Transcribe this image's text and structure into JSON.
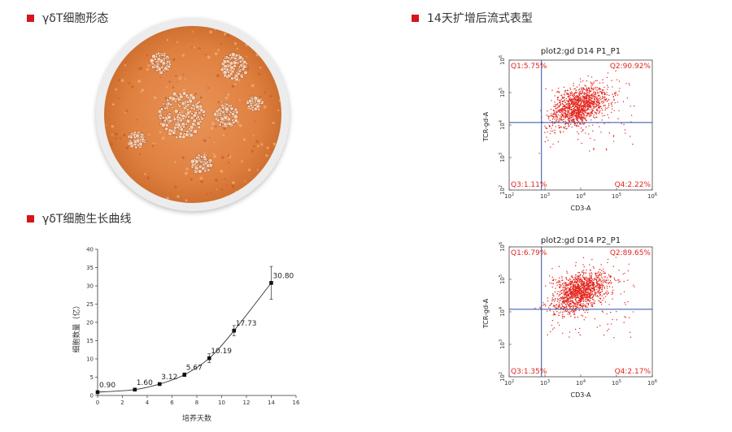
{
  "sections": {
    "morphology_title": "γδT细胞形态",
    "flow_title": "14天扩增后流式表型",
    "growth_title": "γδT细胞生长曲线"
  },
  "colors": {
    "accent": "#d7141b",
    "quadrant_line": "#2b4fa8",
    "dots": "#e3241c",
    "curve": "#333333"
  },
  "chart_data": [
    {
      "type": "line",
      "title": "",
      "xlabel": "培养天数",
      "ylabel": "细胞数量（亿）",
      "xlim": [
        0,
        16
      ],
      "ylim": [
        0,
        40
      ],
      "xticks": [
        0,
        2,
        4,
        6,
        8,
        10,
        12,
        14,
        16
      ],
      "yticks": [
        0,
        5,
        10,
        15,
        20,
        25,
        30,
        35,
        40
      ],
      "x": [
        0,
        3,
        5,
        7,
        9,
        11,
        14
      ],
      "y": [
        0.9,
        1.6,
        3.12,
        5.67,
        10.19,
        17.73,
        30.8
      ],
      "error": [
        0.15,
        0.15,
        0.3,
        0.5,
        1.2,
        1.4,
        4.5
      ],
      "labels": [
        "0.90",
        "1.60",
        "3.12",
        "5.67",
        "10.19",
        "17.73",
        "30.80"
      ]
    },
    {
      "type": "scatter",
      "title": "plot2:gd D14  P1_P1",
      "xlabel": "CD3-A",
      "ylabel": "TCR-gd-A",
      "scale": "log",
      "xlim": [
        100,
        1000000
      ],
      "ylim": [
        100,
        1000000
      ],
      "tick_exponents": [
        2,
        3,
        4,
        5,
        6
      ],
      "gate": {
        "x": 800,
        "y": 12000
      },
      "quadrants": {
        "q1": "Q1:5.75%",
        "q2": "Q2:90.92%",
        "q3": "Q3:1.11%",
        "q4": "Q4:2.22%"
      }
    },
    {
      "type": "scatter",
      "title": "plot2:gd D14  P2_P1",
      "xlabel": "CD3-A",
      "ylabel": "TCR-gd-A",
      "scale": "log",
      "xlim": [
        100,
        1000000
      ],
      "ylim": [
        100,
        1000000
      ],
      "tick_exponents": [
        2,
        3,
        4,
        5,
        6
      ],
      "gate": {
        "x": 800,
        "y": 12000
      },
      "quadrants": {
        "q1": "Q1:6.79%",
        "q2": "Q2:89.65%",
        "q3": "Q3:1.35%",
        "q4": "Q4:2.17%"
      }
    }
  ]
}
